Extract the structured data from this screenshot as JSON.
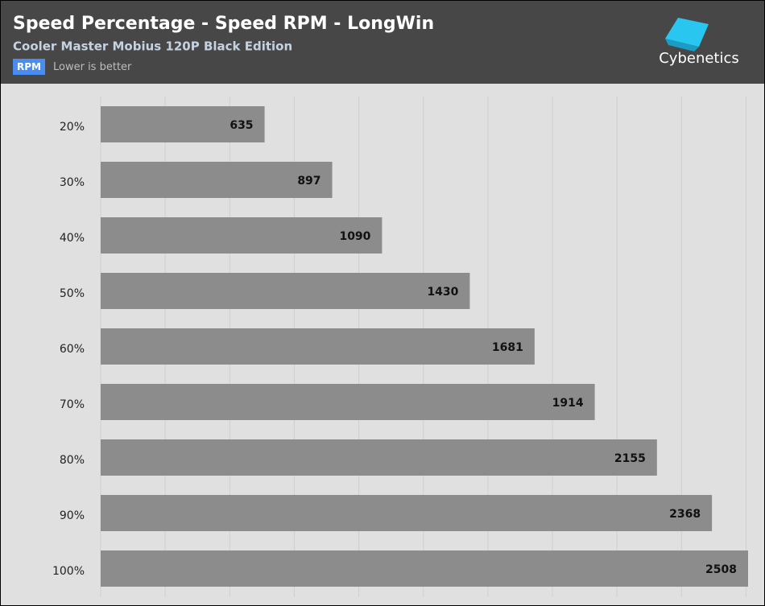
{
  "chart_data": {
    "type": "barh",
    "title": "Speed Percentage - Speed RPM - LongWin",
    "subtitle": "Cooler Master Mobius 120P Black Edition",
    "badge": "RPM",
    "note": "Lower is better",
    "brand": "Cybenetics",
    "categories": [
      "20%",
      "30%",
      "40%",
      "50%",
      "60%",
      "70%",
      "80%",
      "90%",
      "100%"
    ],
    "values": [
      635,
      897,
      1090,
      1430,
      1681,
      1914,
      2155,
      2368,
      2508
    ],
    "color": "#8c8c8c",
    "xlim": [
      0,
      2508
    ],
    "xticks": [
      0,
      250,
      500,
      750,
      1000,
      1250,
      1500,
      1750,
      2000,
      2250,
      2500
    ],
    "grid": true
  }
}
